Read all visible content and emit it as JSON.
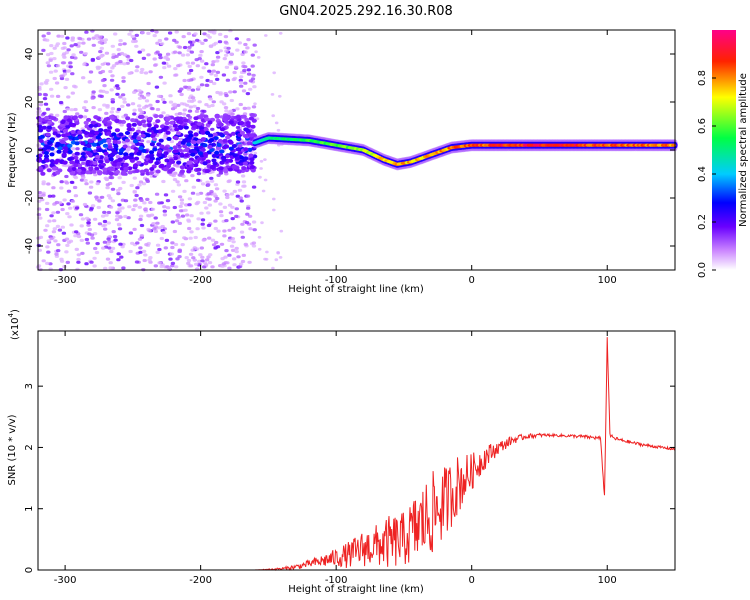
{
  "figure": {
    "title": "GN04.2025.292.16.30.R08"
  },
  "colors": {
    "line": "#ee2222",
    "axis": "#000000",
    "background": "#ffffff"
  },
  "chart_data": [
    {
      "type": "heatmap",
      "title": "GN04.2025.292.16.30.R08",
      "xlabel": "Height of straight line (km)",
      "ylabel": "Frequency (Hz)",
      "xlim": [
        -320,
        150
      ],
      "ylim": [
        -50,
        50
      ],
      "xticks": [
        -300,
        -200,
        -100,
        0,
        100
      ],
      "yticks": [
        -40,
        -20,
        0,
        20,
        40
      ],
      "colorbar": {
        "label": "Normalized spectral amplitude",
        "ticks": [
          0.0,
          0.2,
          0.4,
          0.6,
          0.8
        ],
        "range": [
          0,
          1
        ],
        "colormap": "rainbow (white-violet-blue-cyan-green-yellow-red-magenta)"
      },
      "ridge_center_hz": [
        [
          -320,
          2
        ],
        [
          -250,
          2
        ],
        [
          -160,
          3
        ],
        [
          -150,
          5
        ],
        [
          -120,
          4
        ],
        [
          -100,
          2
        ],
        [
          -80,
          0
        ],
        [
          -65,
          -4
        ],
        [
          -55,
          -6
        ],
        [
          -45,
          -5
        ],
        [
          -30,
          -2
        ],
        [
          -15,
          1
        ],
        [
          0,
          2
        ],
        [
          20,
          2
        ],
        [
          50,
          2
        ],
        [
          80,
          2
        ],
        [
          95,
          2
        ],
        [
          100,
          2
        ],
        [
          130,
          2
        ],
        [
          150,
          2
        ]
      ],
      "ridge_amplitude": [
        [
          -320,
          0.35
        ],
        [
          -250,
          0.4
        ],
        [
          -160,
          0.45
        ],
        [
          -150,
          0.55
        ],
        [
          -120,
          0.6
        ],
        [
          -100,
          0.65
        ],
        [
          -80,
          0.7
        ],
        [
          -60,
          0.85
        ],
        [
          -40,
          0.8
        ],
        [
          -20,
          0.85
        ],
        [
          0,
          0.9
        ],
        [
          20,
          0.95
        ],
        [
          50,
          0.97
        ],
        [
          80,
          0.97
        ],
        [
          95,
          0.9
        ],
        [
          100,
          0.9
        ],
        [
          130,
          0.9
        ],
        [
          150,
          0.85
        ]
      ],
      "scatter_region_km": [
        -320,
        -160
      ]
    },
    {
      "type": "line",
      "title": "",
      "xlabel": "Height of straight line (km)",
      "ylabel": "SNR (10 * v/v)",
      "y_multiplier_label": "(x10",
      "y_multiplier_exp": "4",
      "y_multiplier_close": ")",
      "xlim": [
        -320,
        150
      ],
      "ylim": [
        0,
        3.9
      ],
      "xticks": [
        -300,
        -200,
        -100,
        0,
        100
      ],
      "yticks": [
        0,
        1,
        2,
        3
      ],
      "grid": false,
      "series": [
        {
          "color": "#ee2222",
          "x": [
            -320,
            -250,
            -200,
            -160,
            -140,
            -130,
            -120,
            -110,
            -100,
            -90,
            -80,
            -70,
            -60,
            -50,
            -40,
            -30,
            -20,
            -10,
            0,
            10,
            20,
            30,
            40,
            50,
            60,
            70,
            80,
            90,
            95,
            98,
            100,
            102,
            105,
            110,
            120,
            130,
            140,
            150
          ],
          "y": [
            0.0,
            0.0,
            0.0,
            0.0,
            0.02,
            0.05,
            0.1,
            0.15,
            0.2,
            0.25,
            0.35,
            0.4,
            0.45,
            0.5,
            0.7,
            0.9,
            1.1,
            1.4,
            1.6,
            1.85,
            2.0,
            2.12,
            2.18,
            2.2,
            2.2,
            2.19,
            2.18,
            2.16,
            2.15,
            1.2,
            3.8,
            2.2,
            2.15,
            2.12,
            2.07,
            2.03,
            2.0,
            1.97
          ]
        }
      ],
      "noise_amplitude": [
        [
          -320,
          0.0
        ],
        [
          -160,
          0.0
        ],
        [
          -140,
          0.02
        ],
        [
          -120,
          0.06
        ],
        [
          -100,
          0.15
        ],
        [
          -80,
          0.3
        ],
        [
          -70,
          0.35
        ],
        [
          -60,
          0.45
        ],
        [
          -50,
          0.45
        ],
        [
          -40,
          0.6
        ],
        [
          -30,
          0.7
        ],
        [
          -20,
          0.6
        ],
        [
          -10,
          0.5
        ],
        [
          0,
          0.3
        ],
        [
          10,
          0.2
        ],
        [
          20,
          0.1
        ],
        [
          40,
          0.04
        ],
        [
          60,
          0.02
        ],
        [
          90,
          0.03
        ],
        [
          100,
          0.03
        ],
        [
          150,
          0.02
        ]
      ]
    }
  ]
}
